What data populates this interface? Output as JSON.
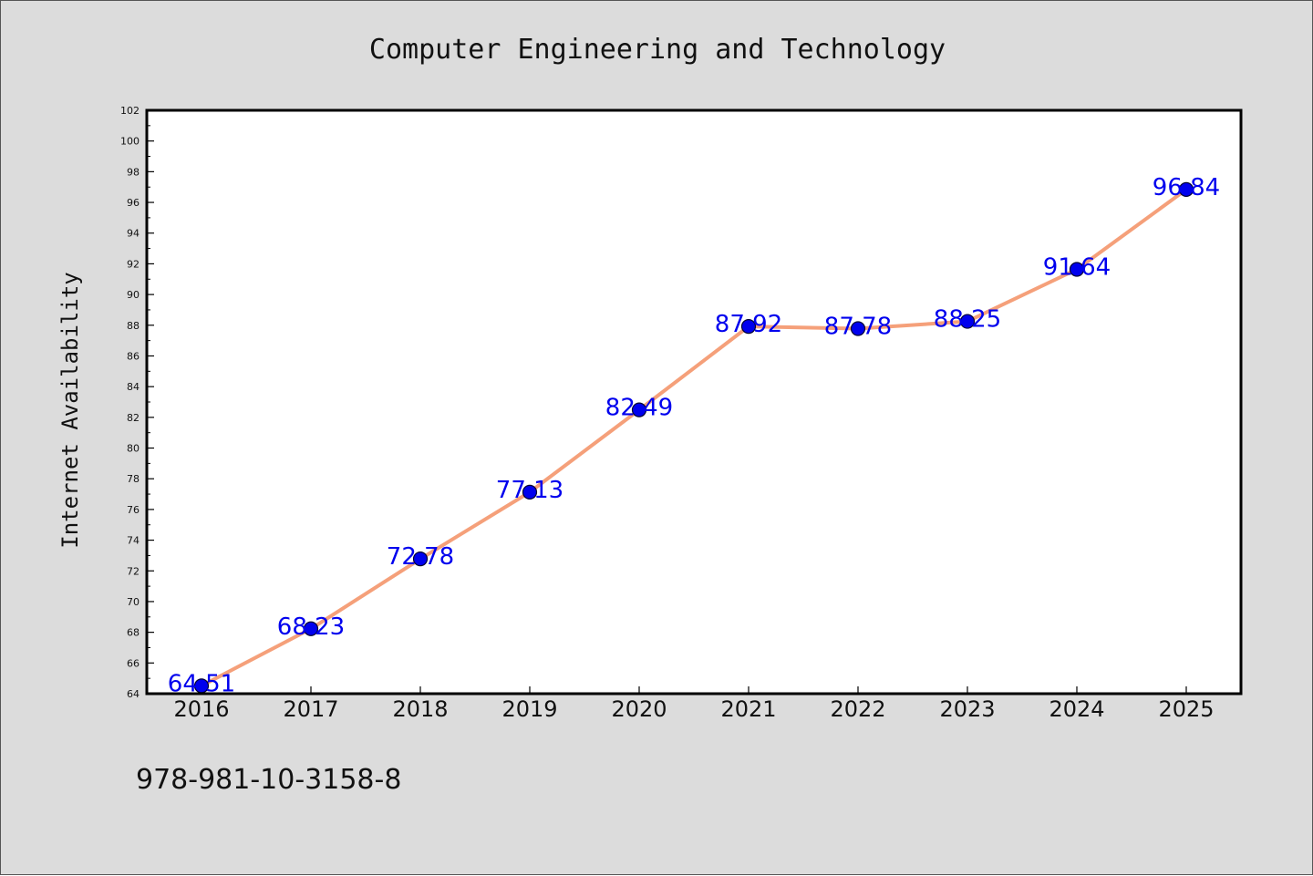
{
  "chart_data": {
    "type": "line",
    "title": "Computer Engineering and Technology",
    "xlabel": "",
    "ylabel": "Internet Availability",
    "categories": [
      "2016",
      "2017",
      "2018",
      "2019",
      "2020",
      "2021",
      "2022",
      "2023",
      "2024",
      "2025"
    ],
    "series": [
      {
        "values": [
          64.51,
          68.23,
          72.78,
          77.13,
          82.49,
          87.92,
          87.78,
          88.25,
          91.64,
          96.84
        ]
      }
    ],
    "data_labels": [
      "64.51",
      "68.23",
      "72.78",
      "77.13",
      "82.49",
      "87.92",
      "87.78",
      "88.25",
      "91.64",
      "96.84"
    ],
    "ylim": [
      64,
      102
    ],
    "yticks": [
      64,
      66,
      68,
      70,
      72,
      74,
      76,
      78,
      80,
      82,
      84,
      86,
      88,
      90,
      92,
      94,
      96,
      98,
      100,
      102
    ],
    "grid": false,
    "legend": "none",
    "colors": {
      "line": "#f5a07a",
      "marker": "#0000ee",
      "label": "#0000ee",
      "plot_bg": "#ffffff",
      "page_bg": "#dcdcdc"
    },
    "footer": "978-981-10-3158-8"
  }
}
